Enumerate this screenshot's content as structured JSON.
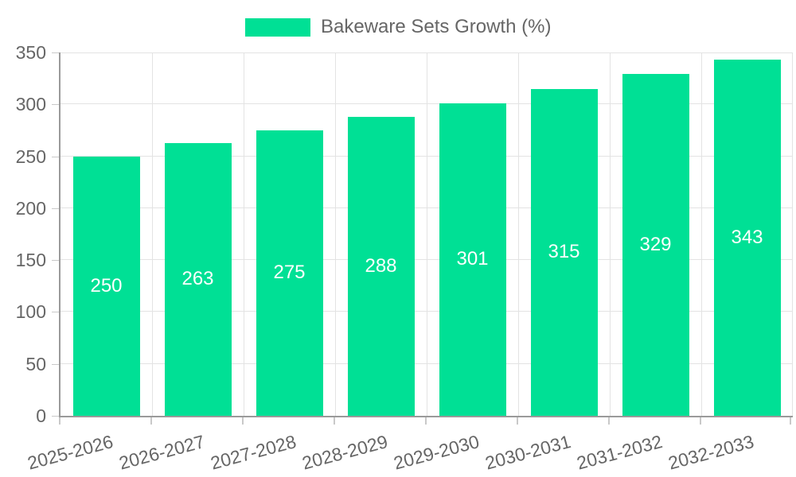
{
  "legend": {
    "label": "Bakeware Sets Growth (%)"
  },
  "colors": {
    "bar": "#00E095",
    "value_label": "#ffffff",
    "axis_text": "#666666",
    "grid_line": "#e3e3e3",
    "axis_line": "#9a9a9a",
    "tick_mark": "#c9c9c9"
  },
  "chart_data": {
    "type": "bar",
    "title": "",
    "series_name": "Bakeware Sets Growth (%)",
    "categories": [
      "2025-2026",
      "2026-2027",
      "2027-2028",
      "2028-2029",
      "2029-2030",
      "2030-2031",
      "2031-2032",
      "2032-2033"
    ],
    "values": [
      250,
      263,
      275,
      288,
      301,
      315,
      329,
      343
    ],
    "xlabel": "",
    "ylabel": "",
    "ylim": [
      0,
      350
    ],
    "ytick_step": 50,
    "yticks": [
      0,
      50,
      100,
      150,
      200,
      250,
      300,
      350
    ],
    "grid": true,
    "legend_position": "top-center",
    "value_labels_position": "inside-center",
    "x_label_rotation_deg": -15
  }
}
